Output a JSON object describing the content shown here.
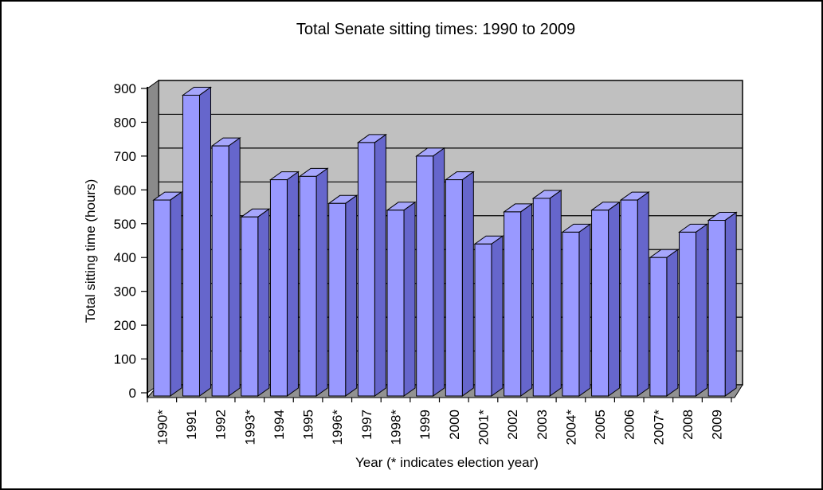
{
  "chart_data": {
    "type": "bar",
    "style": "excel-3d-column",
    "title": "Total Senate sitting times: 1990 to 2009",
    "xlabel": "Year (* indicates election year)",
    "ylabel": "Total sitting time (hours)",
    "categories": [
      "1990*",
      "1991",
      "1992",
      "1993*",
      "1994",
      "1995",
      "1996*",
      "1997",
      "1998*",
      "1999",
      "2000",
      "2001*",
      "2002",
      "2003",
      "2004*",
      "2005",
      "2006",
      "2007*",
      "2008",
      "2009"
    ],
    "values": [
      570,
      880,
      730,
      520,
      630,
      640,
      560,
      740,
      540,
      700,
      630,
      440,
      535,
      575,
      475,
      540,
      570,
      400,
      475,
      510
    ],
    "y_ticks": [
      0,
      100,
      200,
      300,
      400,
      500,
      600,
      700,
      800,
      900
    ],
    "ylim": [
      0,
      900
    ],
    "grid": "horizontal",
    "legend": "none",
    "election_year_marker": "*",
    "colors": {
      "bar_front": "#9999FF",
      "bar_side": "#6666CC",
      "bar_top": "#A6A6FC",
      "wall_back": "#C0C0C0",
      "wall_side": "#8A8A8A",
      "floor": "#929292",
      "gridline": "#000000",
      "axis": "#000000",
      "text": "#000000",
      "background": "#FFFFFF"
    }
  }
}
